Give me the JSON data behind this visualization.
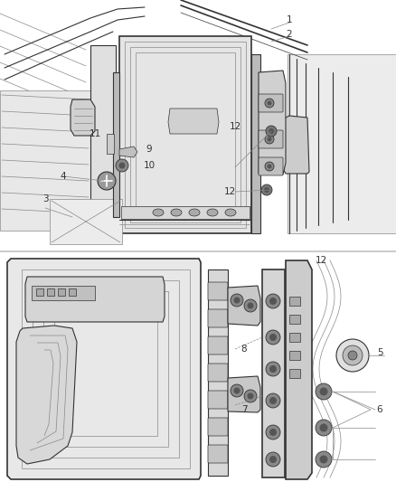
{
  "bg_color": "#ffffff",
  "fig_width": 4.38,
  "fig_height": 5.33,
  "dpi": 100,
  "label_color": "#222222",
  "line_color": "#333333",
  "line_color_light": "#888888",
  "font_size": 7.5
}
